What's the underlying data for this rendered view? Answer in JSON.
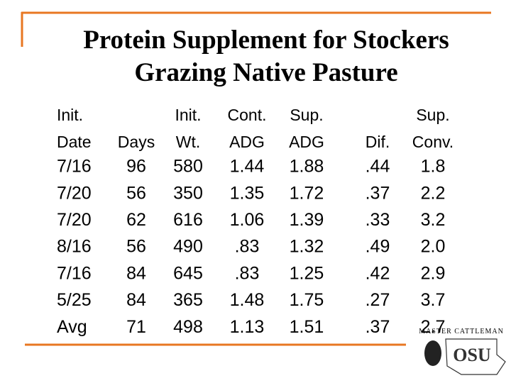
{
  "title": [
    "Protein Supplement for Stockers",
    "Grazing Native Pasture"
  ],
  "table": {
    "header": [
      {
        "lines": [
          "Init.",
          "Date"
        ]
      },
      {
        "lines": [
          "Days"
        ]
      },
      {
        "lines": [
          "Init.",
          "Wt."
        ]
      },
      {
        "lines": [
          "Cont.",
          "ADG"
        ]
      },
      {
        "lines": [
          "Sup.",
          "ADG"
        ]
      },
      {
        "lines": [
          "Dif."
        ]
      },
      {
        "lines": [
          "Sup.",
          "Conv."
        ]
      }
    ],
    "rows": [
      [
        "7/16",
        "96",
        "580",
        "1.44",
        "1.88",
        ".44",
        "1.8"
      ],
      [
        "7/20",
        "56",
        "350",
        "1.35",
        "1.72",
        ".37",
        "2.2"
      ],
      [
        "7/20",
        "62",
        "616",
        "1.06",
        "1.39",
        ".33",
        "3.2"
      ],
      [
        "8/16",
        "56",
        "490",
        ".83",
        "1.32",
        ".49",
        "2.0"
      ],
      [
        "7/16",
        "84",
        "645",
        ".83",
        "1.25",
        ".42",
        "2.9"
      ],
      [
        "5/25",
        "84",
        "365",
        "1.48",
        "1.75",
        ".27",
        "3.7"
      ],
      [
        "Avg",
        "71",
        "498",
        "1.13",
        "1.51",
        ".37",
        "2.7"
      ]
    ]
  },
  "logo": {
    "tagline": "Master Cattleman",
    "mark": "OSU"
  }
}
